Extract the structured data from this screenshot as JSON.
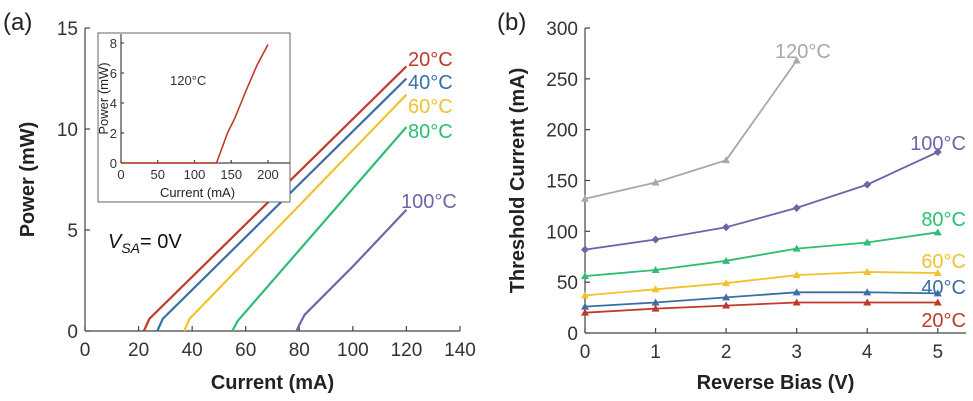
{
  "chart_data": [
    {
      "type": "line",
      "panel_label": "(a)",
      "xlabel": "Current (mA)",
      "ylabel": "Power (mW)",
      "xlim": [
        0,
        140
      ],
      "ylim": [
        0,
        15
      ],
      "xticks": [
        0,
        20,
        40,
        60,
        80,
        100,
        120,
        140
      ],
      "yticks": [
        0,
        5,
        10,
        15
      ],
      "annotation": {
        "prefix": "V",
        "subscript": "SA",
        "suffix": "= 0V"
      },
      "series": [
        {
          "name": "20°C",
          "color": "#c0392b",
          "points": [
            [
              22,
              0
            ],
            [
              24,
              0.6
            ],
            [
              120,
              13.1
            ]
          ]
        },
        {
          "name": "40°C",
          "color": "#3a6ea5",
          "points": [
            [
              27,
              0
            ],
            [
              29,
              0.6
            ],
            [
              120,
              12.5
            ]
          ]
        },
        {
          "name": "60°C",
          "color": "#f2c12e",
          "points": [
            [
              37,
              0
            ],
            [
              39,
              0.6
            ],
            [
              120,
              11.7
            ]
          ]
        },
        {
          "name": "80°C",
          "color": "#2ebd73",
          "points": [
            [
              55,
              0
            ],
            [
              57,
              0.5
            ],
            [
              120,
              10.1
            ]
          ]
        },
        {
          "name": "100°C",
          "color": "#6b66a8",
          "points": [
            [
              79,
              0
            ],
            [
              80,
              0.3
            ],
            [
              82,
              0.8
            ],
            [
              100,
              3.2
            ],
            [
              120,
              6.0
            ]
          ]
        }
      ],
      "inset": {
        "xlabel": "Current (mA)",
        "ylabel": "Power (mW)",
        "xlim": [
          0,
          230
        ],
        "ylim": [
          0,
          8.6
        ],
        "xticks": [
          0,
          50,
          100,
          150,
          200
        ],
        "yticks": [
          0,
          2,
          4,
          6,
          8
        ],
        "series": [
          {
            "name": "120°C",
            "color": "#c0392b",
            "points": [
              [
                0,
                0
              ],
              [
                130,
                0
              ],
              [
                136,
                0.8
              ],
              [
                145,
                2.0
              ],
              [
                155,
                3.0
              ],
              [
                170,
                4.8
              ],
              [
                185,
                6.5
              ],
              [
                200,
                7.9
              ]
            ]
          }
        ]
      }
    },
    {
      "type": "line",
      "panel_label": "(b)",
      "xlabel": "Reverse Bias (V)",
      "ylabel": "Threshold Current (mA)",
      "xlim": [
        0,
        5.4
      ],
      "ylim": [
        0,
        300
      ],
      "xticks": [
        0,
        1,
        2,
        3,
        4,
        5
      ],
      "yticks": [
        0,
        50,
        100,
        150,
        200,
        250,
        300
      ],
      "series": [
        {
          "name": "120°C",
          "color": "#a8a8a8",
          "marker": "triangle",
          "x": [
            0,
            1,
            2,
            3
          ],
          "values": [
            132,
            148,
            170,
            268
          ]
        },
        {
          "name": "100°C",
          "color": "#6b66a8",
          "marker": "diamond",
          "x": [
            0,
            1,
            2,
            3,
            4,
            5
          ],
          "values": [
            82,
            92,
            104,
            123,
            146,
            178
          ]
        },
        {
          "name": "80°C",
          "color": "#2ebd73",
          "marker": "triangle",
          "x": [
            0,
            1,
            2,
            3,
            4,
            5
          ],
          "values": [
            56,
            62,
            71,
            83,
            89,
            99
          ]
        },
        {
          "name": "60°C",
          "color": "#f2c12e",
          "marker": "triangle",
          "x": [
            0,
            1,
            2,
            3,
            4,
            5
          ],
          "values": [
            37,
            43,
            49,
            57,
            60,
            59
          ]
        },
        {
          "name": "40°C",
          "color": "#3a6ea5",
          "marker": "triangle",
          "x": [
            0,
            1,
            2,
            3,
            4,
            5
          ],
          "values": [
            26,
            30,
            35,
            40,
            40,
            39
          ]
        },
        {
          "name": "20°C",
          "color": "#c0392b",
          "marker": "triangle",
          "x": [
            0,
            1,
            2,
            3,
            4,
            5
          ],
          "values": [
            20,
            24,
            27,
            30,
            30,
            30
          ]
        }
      ]
    }
  ]
}
